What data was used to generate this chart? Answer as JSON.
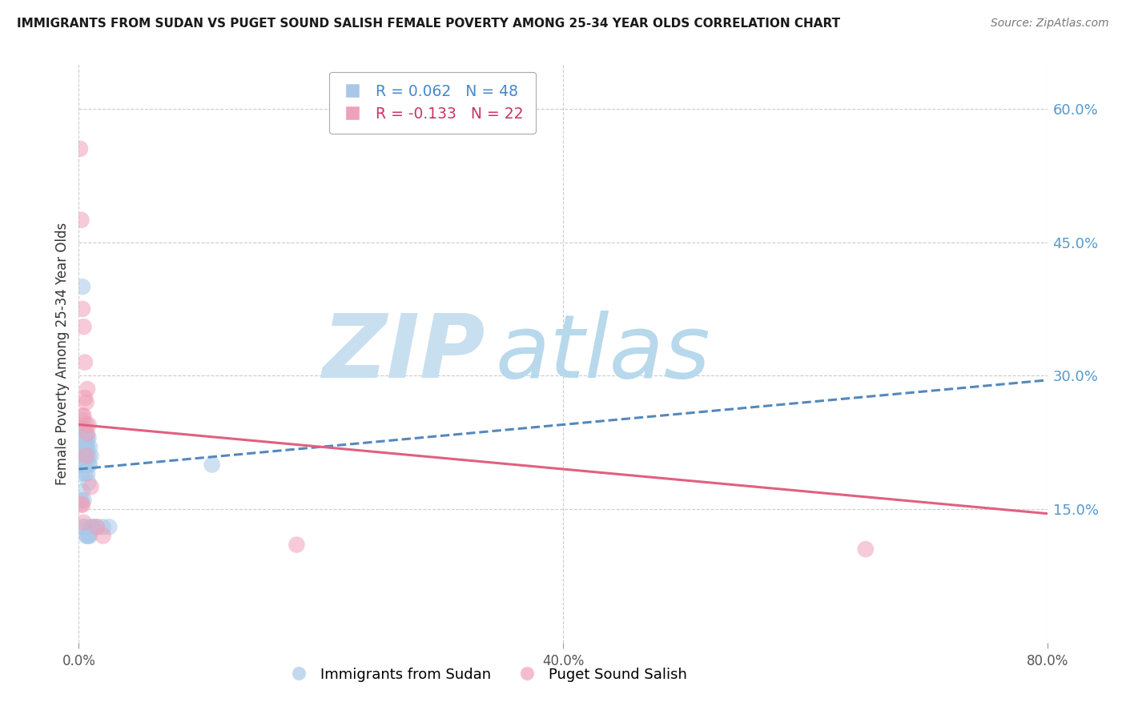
{
  "title": "IMMIGRANTS FROM SUDAN VS PUGET SOUND SALISH FEMALE POVERTY AMONG 25-34 YEAR OLDS CORRELATION CHART",
  "source": "Source: ZipAtlas.com",
  "ylabel": "Female Poverty Among 25-34 Year Olds",
  "xlim": [
    0.0,
    0.8
  ],
  "ylim": [
    0.0,
    0.65
  ],
  "right_yticks": [
    0.15,
    0.3,
    0.45,
    0.6
  ],
  "right_ytick_labels": [
    "15.0%",
    "30.0%",
    "45.0%",
    "60.0%"
  ],
  "xticks": [
    0.0,
    0.4,
    0.8
  ],
  "xtick_labels": [
    "0.0%",
    "40.0%",
    "80.0%"
  ],
  "grid_yticks": [
    0.15,
    0.3,
    0.45,
    0.6
  ],
  "grid_xticks": [
    0.0,
    0.4,
    0.8
  ],
  "grid_color": "#cccccc",
  "background_color": "#ffffff",
  "watermark_ZIP_text": "ZIP",
  "watermark_atlas_text": "atlas",
  "watermark_ZIP_color": "#c8dff0",
  "watermark_atlas_color": "#b8d8ec",
  "series": [
    {
      "name": "Immigrants from Sudan",
      "R": 0.062,
      "N": 48,
      "dot_color": "#a8c8e8",
      "line_style": "--",
      "line_color": "#5588bb",
      "trend_x": [
        0.0,
        0.8
      ],
      "trend_y": [
        0.195,
        0.295
      ],
      "x": [
        0.001,
        0.002,
        0.003,
        0.004,
        0.005,
        0.006,
        0.007,
        0.008,
        0.002,
        0.003,
        0.004,
        0.005,
        0.006,
        0.007,
        0.008,
        0.009,
        0.003,
        0.004,
        0.005,
        0.006,
        0.007,
        0.008,
        0.009,
        0.01,
        0.002,
        0.003,
        0.004,
        0.005,
        0.006,
        0.007,
        0.008,
        0.003,
        0.005,
        0.006,
        0.007,
        0.008,
        0.009,
        0.01,
        0.011,
        0.012,
        0.015,
        0.02,
        0.025,
        0.002,
        0.003,
        0.004,
        0.11,
        0.003
      ],
      "y": [
        0.2,
        0.21,
        0.22,
        0.2,
        0.21,
        0.22,
        0.21,
        0.2,
        0.19,
        0.2,
        0.21,
        0.19,
        0.2,
        0.19,
        0.18,
        0.2,
        0.23,
        0.22,
        0.23,
        0.22,
        0.23,
        0.21,
        0.22,
        0.21,
        0.24,
        0.25,
        0.24,
        0.23,
        0.24,
        0.22,
        0.23,
        0.13,
        0.13,
        0.12,
        0.12,
        0.12,
        0.12,
        0.13,
        0.13,
        0.13,
        0.13,
        0.13,
        0.13,
        0.16,
        0.17,
        0.16,
        0.2,
        0.4
      ]
    },
    {
      "name": "Puget Sound Salish",
      "R": -0.133,
      "N": 22,
      "dot_color": "#f0a0b8",
      "line_style": "-",
      "line_color": "#e06080",
      "trend_x": [
        0.0,
        0.8
      ],
      "trend_y": [
        0.245,
        0.145
      ],
      "x": [
        0.001,
        0.002,
        0.003,
        0.004,
        0.005,
        0.006,
        0.007,
        0.003,
        0.004,
        0.005,
        0.006,
        0.007,
        0.008,
        0.01,
        0.015,
        0.02,
        0.002,
        0.003,
        0.004,
        0.18,
        0.65,
        0.006
      ],
      "y": [
        0.555,
        0.475,
        0.375,
        0.355,
        0.315,
        0.27,
        0.285,
        0.255,
        0.255,
        0.275,
        0.245,
        0.235,
        0.245,
        0.175,
        0.13,
        0.12,
        0.155,
        0.155,
        0.135,
        0.11,
        0.105,
        0.21
      ]
    }
  ]
}
